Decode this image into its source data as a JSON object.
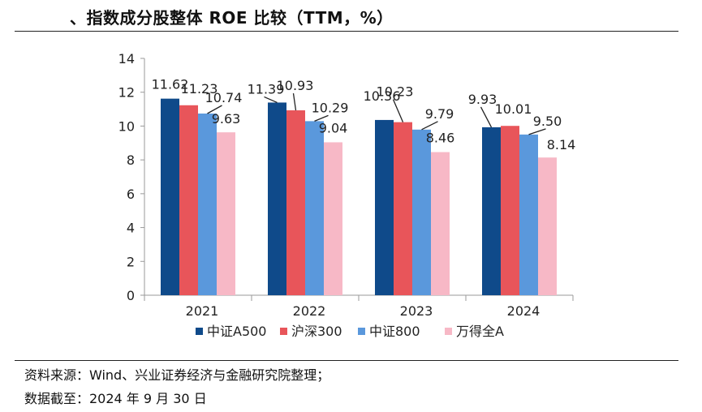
{
  "title": "、指数成分股整体 ROE 比较（TTM，%）",
  "footer": {
    "source": "资料来源：Wind、兴业证券经济与金融研究院整理；",
    "cutoff": "数据截至：2024 年 9 月 30 日"
  },
  "chart_data": {
    "type": "bar",
    "title": "、指数成分股整体 ROE 比较（TTM，%）",
    "xlabel": "",
    "ylabel": "",
    "ylim": [
      0,
      14
    ],
    "yticks": [
      0,
      2,
      4,
      6,
      8,
      10,
      12,
      14
    ],
    "categories": [
      "2021",
      "2022",
      "2023",
      "2024"
    ],
    "grid": false,
    "legend_position": "bottom",
    "series": [
      {
        "name": "中证A500",
        "color": "#0f4a8a",
        "values": [
          11.62,
          11.39,
          10.36,
          9.93
        ],
        "labels": [
          "11.62",
          "11.39",
          "10.36",
          "9.93"
        ]
      },
      {
        "name": "沪深300",
        "color": "#e8555a",
        "values": [
          11.23,
          10.93,
          10.23,
          10.01
        ],
        "labels": [
          "11.23",
          "10.93",
          "10.23",
          "10.01"
        ]
      },
      {
        "name": "中证800",
        "color": "#5a98dc",
        "values": [
          10.74,
          10.29,
          9.79,
          9.5
        ],
        "labels": [
          "10.74",
          "10.29",
          "9.79",
          "9.50"
        ]
      },
      {
        "name": "万得全A",
        "color": "#f7b8c6",
        "values": [
          9.63,
          9.04,
          8.46,
          8.14
        ],
        "labels": [
          "9.63",
          "9.04",
          "8.46",
          "8.14"
        ]
      }
    ]
  }
}
